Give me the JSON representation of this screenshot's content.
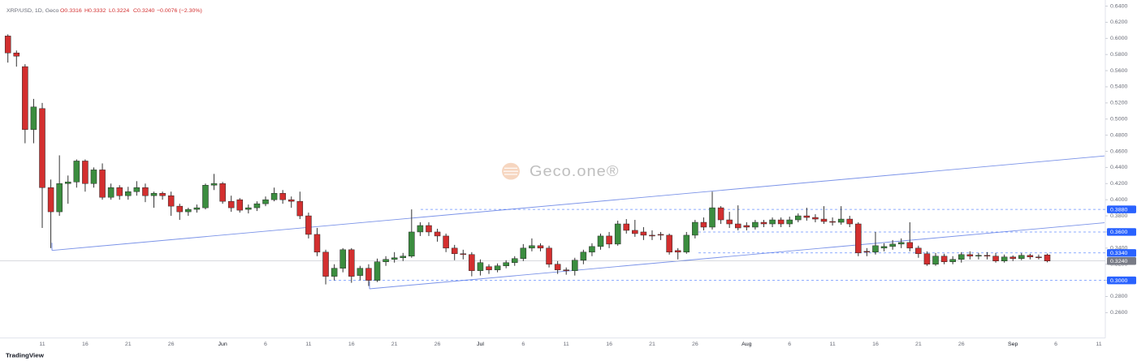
{
  "chart_data": {
    "type": "candlestick",
    "legend": {
      "symbol": "XRP/USD, 1D, Geco",
      "ohlc": [
        "O0.3316",
        "H0.3332",
        "L0.3224",
        "C0.3240"
      ],
      "change": "−0.0076 (−2.30%)"
    },
    "watermark": "Geco.one®",
    "footer": "TradingView",
    "up_color": "#3b8d3f",
    "down_color": "#d32f2f",
    "level_color": "#2962ff",
    "categories": [
      null,
      null,
      null,
      null,
      "11",
      null,
      null,
      null,
      null,
      "16",
      null,
      null,
      null,
      null,
      "21",
      null,
      null,
      null,
      null,
      "26",
      null,
      null,
      null,
      null,
      null,
      "Jun",
      null,
      null,
      null,
      null,
      "6",
      null,
      null,
      null,
      null,
      "11",
      null,
      null,
      null,
      null,
      "16",
      null,
      null,
      null,
      null,
      "21",
      null,
      null,
      null,
      null,
      "26",
      null,
      null,
      null,
      null,
      "Jul",
      null,
      null,
      null,
      null,
      "6",
      null,
      null,
      null,
      null,
      "11",
      null,
      null,
      null,
      null,
      "16",
      null,
      null,
      null,
      null,
      "21",
      null,
      null,
      null,
      null,
      "26",
      null,
      null,
      null,
      null,
      null,
      "Aug",
      null,
      null,
      null,
      null,
      "6",
      null,
      null,
      null,
      null,
      "11",
      null,
      null,
      null,
      null,
      "16",
      null,
      null,
      null,
      null,
      "21",
      null,
      null,
      null,
      null,
      "26",
      null,
      null,
      null,
      null,
      null,
      "Sep",
      null,
      null,
      null,
      null,
      "6",
      null,
      null,
      null,
      null,
      "11"
    ],
    "open": [
      0.603,
      0.582,
      0.565,
      0.487,
      0.513,
      0.415,
      0.385,
      0.42,
      0.422,
      0.448,
      0.42,
      0.437,
      0.403,
      0.415,
      0.405,
      0.41,
      0.415,
      0.405,
      0.408,
      0.405,
      0.392,
      0.385,
      0.388,
      0.39,
      0.418,
      0.42,
      0.398,
      0.4,
      0.388,
      0.39,
      0.395,
      0.4,
      0.408,
      0.4,
      0.398,
      0.38,
      0.357,
      0.335,
      0.305,
      0.315,
      0.338,
      0.306,
      0.315,
      0.3,
      0.323,
      0.326,
      0.328,
      0.33,
      0.36,
      0.368,
      0.36,
      0.355,
      0.34,
      0.333,
      0.332,
      0.312,
      0.317,
      0.313,
      0.318,
      0.322,
      0.327,
      0.34,
      0.343,
      0.34,
      0.32,
      0.313,
      0.312,
      0.325,
      0.335,
      0.342,
      0.355,
      0.345,
      0.37,
      0.362,
      0.36,
      0.356,
      0.357,
      0.356,
      0.337,
      0.335,
      0.356,
      0.372,
      0.366,
      0.39,
      0.375,
      0.37,
      0.368,
      0.366,
      0.372,
      0.37,
      0.375,
      0.37,
      0.375,
      0.38,
      0.378,
      0.376,
      0.373,
      0.372,
      0.376,
      0.37,
      0.336,
      0.335,
      0.34,
      0.342,
      0.345,
      0.347,
      0.34,
      0.333,
      0.32,
      0.33,
      0.323,
      0.326,
      0.332,
      0.33,
      0.331,
      0.33,
      0.324,
      0.329,
      0.327,
      0.331,
      0.329,
      0.3316,
      null,
      null,
      null,
      null,
      null,
      null
    ],
    "high": [
      0.605,
      0.585,
      0.568,
      0.525,
      0.52,
      0.425,
      0.455,
      0.43,
      0.45,
      0.45,
      0.44,
      0.445,
      0.42,
      0.418,
      0.416,
      0.423,
      0.42,
      0.41,
      0.41,
      0.41,
      0.395,
      0.39,
      0.394,
      0.42,
      0.432,
      0.422,
      0.405,
      0.402,
      0.394,
      0.398,
      0.404,
      0.415,
      0.412,
      0.404,
      0.41,
      0.384,
      0.365,
      0.338,
      0.32,
      0.34,
      0.34,
      0.318,
      0.32,
      0.327,
      0.33,
      0.335,
      0.334,
      0.388,
      0.372,
      0.372,
      0.364,
      0.358,
      0.344,
      0.338,
      0.335,
      0.326,
      0.32,
      0.321,
      0.325,
      0.33,
      0.345,
      0.352,
      0.346,
      0.343,
      0.324,
      0.316,
      0.328,
      0.338,
      0.346,
      0.358,
      0.36,
      0.374,
      0.376,
      0.375,
      0.366,
      0.362,
      0.36,
      0.358,
      0.34,
      0.36,
      0.375,
      0.378,
      0.41,
      0.392,
      0.385,
      0.393,
      0.372,
      0.375,
      0.375,
      0.378,
      0.378,
      0.379,
      0.383,
      0.39,
      0.382,
      0.392,
      0.378,
      0.392,
      0.38,
      0.372,
      0.34,
      0.36,
      0.346,
      0.35,
      0.352,
      0.372,
      0.343,
      0.336,
      0.334,
      0.333,
      0.33,
      0.335,
      0.336,
      0.334,
      0.335,
      0.334,
      0.332,
      0.331,
      0.334,
      0.333,
      0.332,
      0.3332,
      null,
      null,
      null,
      null,
      null,
      null
    ],
    "low": [
      0.57,
      0.565,
      0.47,
      0.47,
      0.365,
      0.34,
      0.38,
      0.395,
      0.415,
      0.41,
      0.415,
      0.4,
      0.4,
      0.4,
      0.4,
      0.405,
      0.397,
      0.39,
      0.4,
      0.38,
      0.375,
      0.38,
      0.384,
      0.388,
      0.412,
      0.395,
      0.385,
      0.384,
      0.383,
      0.386,
      0.392,
      0.398,
      0.395,
      0.39,
      0.376,
      0.352,
      0.33,
      0.295,
      0.3,
      0.31,
      0.297,
      0.3,
      0.293,
      0.298,
      0.318,
      0.322,
      0.324,
      0.328,
      0.355,
      0.355,
      0.348,
      0.335,
      0.325,
      0.326,
      0.305,
      0.306,
      0.308,
      0.31,
      0.315,
      0.318,
      0.324,
      0.336,
      0.336,
      0.316,
      0.308,
      0.307,
      0.306,
      0.32,
      0.33,
      0.338,
      0.34,
      0.343,
      0.358,
      0.354,
      0.35,
      0.35,
      0.35,
      0.332,
      0.326,
      0.333,
      0.352,
      0.362,
      0.363,
      0.37,
      0.365,
      0.362,
      0.362,
      0.363,
      0.366,
      0.366,
      0.366,
      0.366,
      0.372,
      0.374,
      0.372,
      0.37,
      0.368,
      0.369,
      0.366,
      0.33,
      0.33,
      0.332,
      0.336,
      0.338,
      0.34,
      0.336,
      0.328,
      0.318,
      0.318,
      0.32,
      0.32,
      0.322,
      0.326,
      0.326,
      0.326,
      0.322,
      0.322,
      0.324,
      0.325,
      0.326,
      0.326,
      0.3224,
      null,
      null,
      null,
      null,
      null,
      null
    ],
    "close": [
      0.582,
      0.578,
      0.487,
      0.515,
      0.415,
      0.385,
      0.42,
      0.422,
      0.448,
      0.42,
      0.437,
      0.403,
      0.415,
      0.405,
      0.41,
      0.415,
      0.405,
      0.408,
      0.405,
      0.392,
      0.385,
      0.388,
      0.39,
      0.418,
      0.42,
      0.398,
      0.39,
      0.387,
      0.39,
      0.395,
      0.4,
      0.408,
      0.4,
      0.398,
      0.38,
      0.357,
      0.335,
      0.305,
      0.315,
      0.338,
      0.305,
      0.315,
      0.3,
      0.323,
      0.326,
      0.328,
      0.33,
      0.36,
      0.368,
      0.36,
      0.355,
      0.34,
      0.333,
      0.332,
      0.312,
      0.322,
      0.313,
      0.318,
      0.322,
      0.327,
      0.34,
      0.343,
      0.34,
      0.32,
      0.313,
      0.312,
      0.325,
      0.335,
      0.342,
      0.355,
      0.345,
      0.37,
      0.362,
      0.358,
      0.356,
      0.355,
      0.356,
      0.335,
      0.335,
      0.356,
      0.372,
      0.366,
      0.39,
      0.375,
      0.37,
      0.365,
      0.366,
      0.372,
      0.37,
      0.375,
      0.37,
      0.375,
      0.38,
      0.378,
      0.376,
      0.373,
      0.372,
      0.376,
      0.37,
      0.334,
      0.335,
      0.343,
      0.342,
      0.345,
      0.347,
      0.34,
      0.333,
      0.32,
      0.33,
      0.323,
      0.326,
      0.332,
      0.33,
      0.331,
      0.33,
      0.324,
      0.329,
      0.327,
      0.331,
      0.329,
      0.328,
      0.324,
      null,
      null,
      null,
      null,
      null,
      null
    ],
    "levels": [
      {
        "value": 0.388,
        "label": "0.3880"
      },
      {
        "value": 0.36,
        "label": "0.3600"
      },
      {
        "value": 0.334,
        "label": "0.3340"
      },
      {
        "value": 0.3,
        "label": "0.3000"
      }
    ],
    "last_price": {
      "value": 0.324,
      "label": "0.3240"
    },
    "ylim": [
      0.2286,
      0.6476
    ],
    "yticks": [
      {
        "value": 0.26,
        "label": "0.2600"
      },
      {
        "value": 0.28,
        "label": "0.2800"
      },
      {
        "value": 0.3,
        "label": "0.3000"
      },
      {
        "value": 0.32,
        "label": "0.3200"
      },
      {
        "value": 0.34,
        "label": "0.3400"
      },
      {
        "value": 0.36,
        "label": "0.3600"
      },
      {
        "value": 0.38,
        "label": "0.3800"
      },
      {
        "value": 0.4,
        "label": "0.4000"
      },
      {
        "value": 0.42,
        "label": "0.4200"
      },
      {
        "value": 0.44,
        "label": "0.4400"
      },
      {
        "value": 0.46,
        "label": "0.4600"
      },
      {
        "value": 0.48,
        "label": "0.4800"
      },
      {
        "value": 0.5,
        "label": "0.5000"
      },
      {
        "value": 0.52,
        "label": "0.5200"
      },
      {
        "value": 0.54,
        "label": "0.5400"
      },
      {
        "value": 0.56,
        "label": "0.5600"
      },
      {
        "value": 0.58,
        "label": "0.5800"
      },
      {
        "value": 0.6,
        "label": "0.6000"
      },
      {
        "value": 0.62,
        "label": "0.6200"
      },
      {
        "value": 0.64,
        "label": "0.6400"
      }
    ],
    "grid": false
  }
}
